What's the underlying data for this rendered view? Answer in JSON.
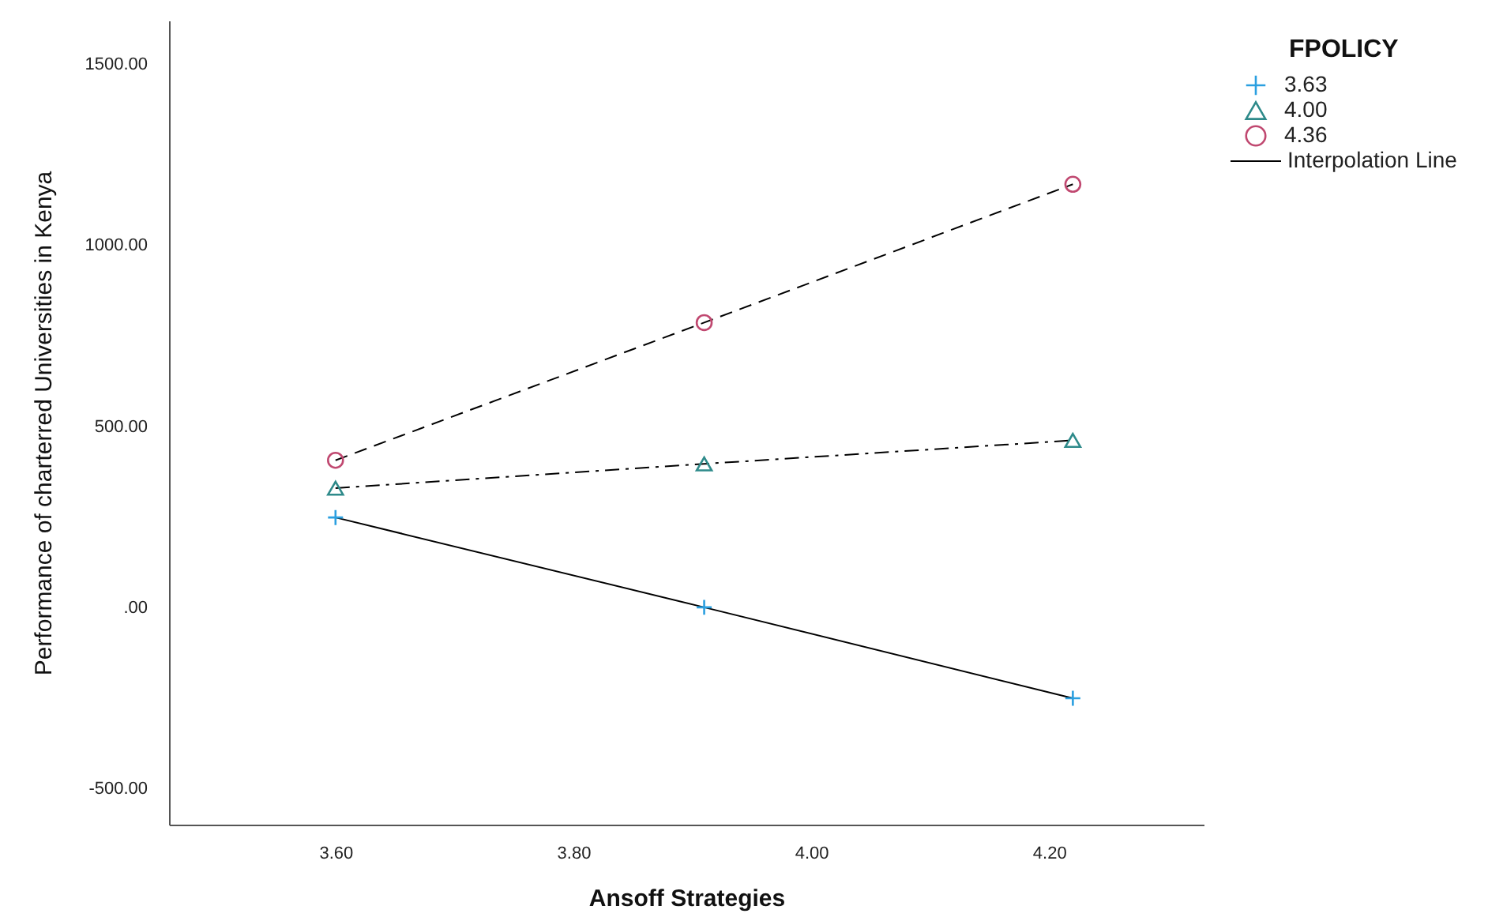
{
  "chart_data": {
    "type": "line",
    "xlabel": "Ansoff Strategies",
    "ylabel": "Performance of charterred Universities in Kenya",
    "legend_title": "FPOLICY",
    "legend": "top right",
    "grid": false,
    "xlim": [
      3.46,
      4.33
    ],
    "xticks": [
      {
        "value": 3.6,
        "label": "3.60"
      },
      {
        "value": 3.8,
        "label": "3.80"
      },
      {
        "value": 4.0,
        "label": "4.00"
      },
      {
        "value": 4.2,
        "label": "4.20"
      }
    ],
    "ylim": [
      -600,
      1620
    ],
    "yticks": [
      {
        "value": -500,
        "label": "-500.00"
      },
      {
        "value": 0,
        "label": ".00"
      },
      {
        "value": 500,
        "label": "500.00"
      },
      {
        "value": 1000,
        "label": "1000.00"
      },
      {
        "value": 1500,
        "label": "1500.00"
      }
    ],
    "x": [
      3.6,
      3.91,
      4.22
    ],
    "series": [
      {
        "name": "3.63",
        "color": "#2a9fe0",
        "marker": "cross",
        "line_style": "solid",
        "values": [
          248,
          0,
          -251
        ]
      },
      {
        "name": "4.00",
        "color": "#2e8a8a",
        "marker": "triangle",
        "line_style": "dashdot",
        "values": [
          329,
          396,
          461
        ]
      },
      {
        "name": "4.36",
        "color": "#c04870",
        "marker": "circle",
        "line_style": "dashed",
        "values": [
          406,
          786,
          1168
        ]
      }
    ],
    "annotations": [
      "Interpolation Line"
    ]
  }
}
